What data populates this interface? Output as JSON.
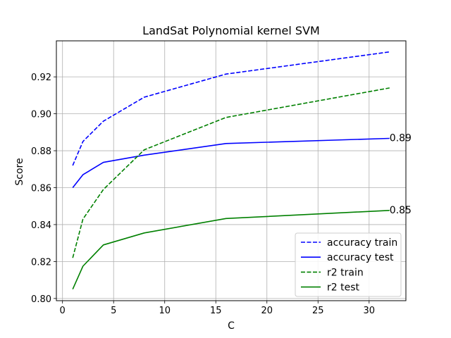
{
  "chart_data": {
    "type": "line",
    "title": "LandSat Polynomial kernel SVM",
    "xlabel": "C",
    "ylabel": "Score",
    "xlim": [
      -0.6,
      33.6
    ],
    "ylim": [
      0.7988,
      0.9395
    ],
    "xticks": [
      0,
      5,
      10,
      15,
      20,
      25,
      30
    ],
    "yticks": [
      0.8,
      0.82,
      0.84,
      0.86,
      0.88,
      0.9,
      0.92
    ],
    "ytick_labels": [
      "0.80",
      "0.82",
      "0.84",
      "0.86",
      "0.88",
      "0.90",
      "0.92"
    ],
    "grid": true,
    "legend_position": "lower-right",
    "series": [
      {
        "name": "accuracy train",
        "color": "#0000ff",
        "dash": "dashed",
        "x": [
          1,
          2,
          4,
          8,
          16,
          32
        ],
        "y": [
          0.872,
          0.885,
          0.896,
          0.909,
          0.9215,
          0.9335
        ]
      },
      {
        "name": "accuracy test",
        "color": "#0000ff",
        "dash": "solid",
        "x": [
          1,
          2,
          4,
          8,
          16,
          32
        ],
        "y": [
          0.86,
          0.867,
          0.8737,
          0.8776,
          0.8839,
          0.8867
        ]
      },
      {
        "name": "r2 train",
        "color": "#008000",
        "dash": "dashed",
        "x": [
          1,
          2,
          4,
          8,
          16,
          32
        ],
        "y": [
          0.822,
          0.843,
          0.859,
          0.8805,
          0.898,
          0.914
        ]
      },
      {
        "name": "r2 test",
        "color": "#008000",
        "dash": "solid",
        "x": [
          1,
          2,
          4,
          8,
          16,
          32
        ],
        "y": [
          0.805,
          0.8175,
          0.829,
          0.8355,
          0.8433,
          0.8477
        ]
      }
    ],
    "annotations": [
      {
        "text": "0.89",
        "x": 32,
        "y": 0.8867
      },
      {
        "text": "0.85",
        "x": 32,
        "y": 0.8477
      }
    ]
  }
}
